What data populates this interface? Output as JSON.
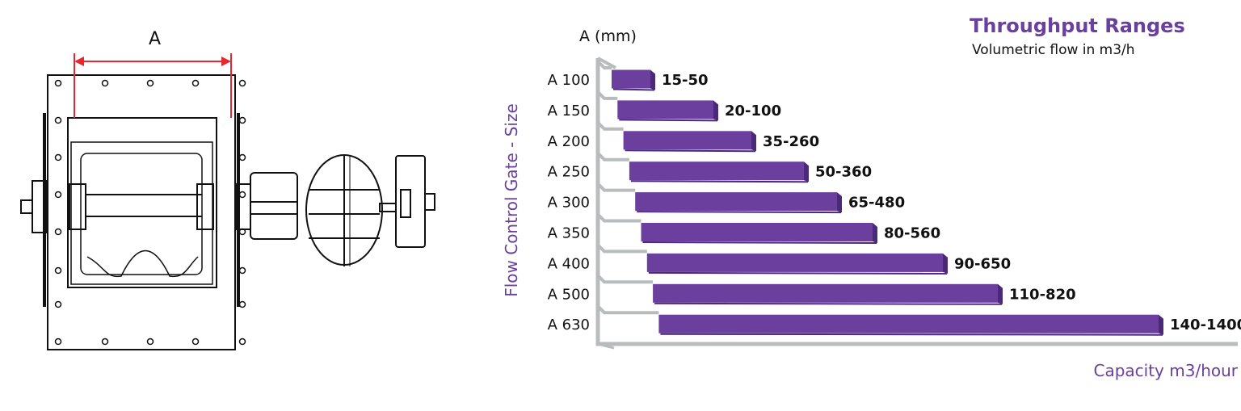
{
  "drawing": {
    "dimension_label": "A"
  },
  "chart_data": {
    "type": "bar",
    "orientation": "horizontal",
    "title": "Throughput Ranges",
    "subtitle": "Volumetric flow in m3/h",
    "ylabel": "Flow Control Gate - Size",
    "ycolumn_header": "A (mm)",
    "xlabel": "Capacity m3/hour",
    "categories": [
      "A 100",
      "A 150",
      "A 200",
      "A 250",
      "A 300",
      "A 350",
      "A 400",
      "A 500",
      "A 630"
    ],
    "series": [
      {
        "min": [
          15,
          20,
          35,
          50,
          65,
          80,
          90,
          110,
          140
        ],
        "max": [
          50,
          100,
          260,
          360,
          480,
          560,
          650,
          820,
          1400
        ]
      }
    ],
    "data_labels": [
      "15-50",
      "20-100",
      "35-260",
      "50-360",
      "65-480",
      "80-560",
      "90-650",
      "110-820",
      "140-1400"
    ],
    "colors": {
      "bar": "#6a3f9e",
      "bar_side": "#4a2a78",
      "axis": "#b8bcbc",
      "label": "#6a3f9e"
    },
    "grid": false
  }
}
